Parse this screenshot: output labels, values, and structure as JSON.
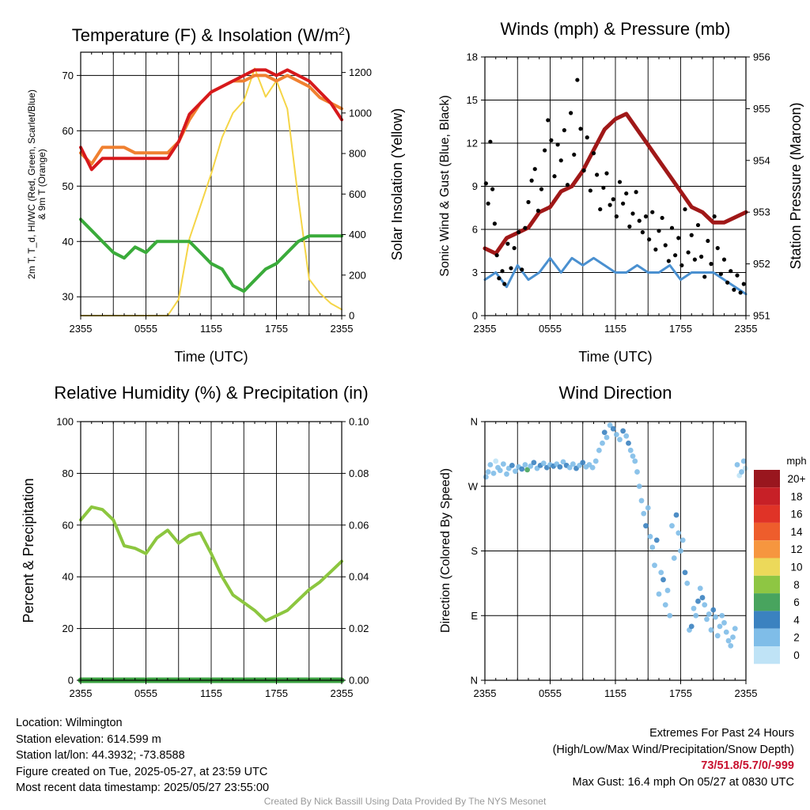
{
  "x_tick_labels": [
    "2355",
    "0555",
    "1155",
    "1755",
    "2355"
  ],
  "colors": {
    "temperature": "#d7191c",
    "dewpoint": "#3aab3a",
    "heat_index_wind_chill": "#f08030",
    "insolation": "#f5d547",
    "wind": "#4a90d0",
    "gust": "#000000",
    "pressure": "#a01818",
    "humidity": "#8cc63f",
    "precipitation": "#3aa040",
    "extremes_text": "#c8102e"
  },
  "chart_data": [
    {
      "type": "line",
      "title": "Temperature (F) & Insolation (W/m²)",
      "xlabel": "Time (UTC)",
      "ylabel": "2m T, T_d, HI/WC (Red, Green, Scarlet/Blue) & 9m T (Orange)",
      "ylabel2": "Solar Insolation (Yellow)",
      "x_hours": [
        0,
        1,
        2,
        3,
        4,
        5,
        6,
        7,
        8,
        9,
        10,
        11,
        12,
        13,
        14,
        15,
        16,
        17,
        18,
        19,
        20,
        21,
        22,
        23,
        24
      ],
      "ylim": [
        26.6,
        74.2
      ],
      "yticks": [
        30,
        40,
        50,
        60,
        70
      ],
      "y2lim": [
        0,
        1300
      ],
      "y2ticks": [
        0,
        200,
        400,
        600,
        800,
        1000,
        1200
      ],
      "series": [
        {
          "name": "2m T",
          "axis": "left",
          "values": [
            57,
            53,
            55,
            55,
            55,
            55,
            55,
            55,
            55,
            58,
            63,
            65,
            67,
            68,
            69,
            70,
            71,
            71,
            70,
            71,
            70,
            69,
            67,
            65,
            62
          ]
        },
        {
          "name": "9m T",
          "axis": "left",
          "values": [
            56,
            54,
            57,
            57,
            57,
            56,
            56,
            56,
            56,
            58,
            62,
            65,
            67,
            68,
            69,
            69,
            70,
            70,
            69,
            70,
            69,
            68,
            66,
            65,
            64
          ]
        },
        {
          "name": "T_d",
          "axis": "left",
          "values": [
            44,
            42,
            40,
            38,
            37,
            39,
            38,
            40,
            40,
            40,
            40,
            38,
            36,
            35,
            32,
            31,
            33,
            35,
            36,
            38,
            40,
            41,
            41,
            41,
            41
          ]
        },
        {
          "name": "Solar Insolation",
          "axis": "right",
          "values": [
            0,
            0,
            0,
            0,
            0,
            0,
            0,
            0,
            0,
            80,
            380,
            540,
            700,
            880,
            1000,
            1060,
            1220,
            1080,
            1160,
            1020,
            580,
            180,
            110,
            60,
            30
          ]
        }
      ]
    },
    {
      "type": "line",
      "title": "Winds (mph) & Pressure (mb)",
      "xlabel": "Time (UTC)",
      "ylabel": "Sonic Wind & Gust (Blue, Black)",
      "ylabel2": "Station Pressure (Maroon)",
      "x_hours": [
        0,
        1,
        2,
        3,
        4,
        5,
        6,
        7,
        8,
        9,
        10,
        11,
        12,
        13,
        14,
        15,
        16,
        17,
        18,
        19,
        20,
        21,
        22,
        23,
        24
      ],
      "ylim": [
        0,
        18
      ],
      "yticks": [
        0,
        3,
        6,
        9,
        12,
        15,
        18
      ],
      "y2lim": [
        951,
        956
      ],
      "y2ticks": [
        951,
        952,
        953,
        954,
        955,
        956
      ],
      "series": [
        {
          "name": "Sonic Wind",
          "axis": "left",
          "values": [
            2.5,
            3,
            2,
            3.5,
            2.5,
            3,
            4,
            3,
            4,
            3.5,
            4,
            3.5,
            3,
            3,
            3.5,
            3,
            3,
            3.5,
            2.5,
            3,
            3,
            3,
            2.5,
            2,
            1.5
          ]
        },
        {
          "name": "Pressure",
          "axis": "right",
          "values": [
            952.3,
            952.2,
            952.5,
            952.6,
            952.7,
            953.0,
            953.1,
            953.4,
            953.5,
            953.8,
            954.2,
            954.6,
            954.8,
            954.9,
            954.6,
            954.3,
            954.0,
            953.7,
            953.4,
            953.1,
            953.0,
            952.8,
            952.8,
            952.9,
            953.0
          ]
        }
      ],
      "gust_points": [
        [
          0.1,
          9.2
        ],
        [
          0.3,
          7.8
        ],
        [
          0.5,
          12.1
        ],
        [
          0.7,
          8.8
        ],
        [
          0.9,
          6.4
        ],
        [
          1.1,
          4.2
        ],
        [
          1.3,
          2.6
        ],
        [
          1.6,
          3.1
        ],
        [
          1.8,
          2.2
        ],
        [
          2.1,
          5.0
        ],
        [
          2.4,
          3.3
        ],
        [
          2.7,
          4.7
        ],
        [
          3.1,
          5.8
        ],
        [
          3.4,
          3.2
        ],
        [
          3.7,
          6.1
        ],
        [
          4.0,
          7.9
        ],
        [
          4.3,
          9.4
        ],
        [
          4.6,
          10.2
        ],
        [
          4.9,
          7.3
        ],
        [
          5.2,
          8.8
        ],
        [
          5.5,
          11.5
        ],
        [
          5.8,
          13.6
        ],
        [
          6.1,
          12.2
        ],
        [
          6.4,
          9.7
        ],
        [
          6.7,
          11.9
        ],
        [
          7.0,
          10.8
        ],
        [
          7.3,
          12.9
        ],
        [
          7.6,
          9.1
        ],
        [
          7.9,
          14.1
        ],
        [
          8.2,
          11.2
        ],
        [
          8.5,
          16.4
        ],
        [
          8.8,
          13.0
        ],
        [
          9.1,
          10.1
        ],
        [
          9.4,
          12.4
        ],
        [
          9.7,
          8.7
        ],
        [
          10.0,
          11.3
        ],
        [
          10.3,
          9.8
        ],
        [
          10.6,
          7.4
        ],
        [
          10.9,
          8.9
        ],
        [
          11.2,
          9.9
        ],
        [
          11.5,
          7.7
        ],
        [
          11.8,
          8.1
        ],
        [
          12.1,
          6.9
        ],
        [
          12.4,
          9.3
        ],
        [
          12.7,
          7.8
        ],
        [
          13.0,
          8.5
        ],
        [
          13.3,
          6.2
        ],
        [
          13.6,
          7.1
        ],
        [
          13.9,
          8.6
        ],
        [
          14.2,
          6.6
        ],
        [
          14.5,
          5.8
        ],
        [
          14.8,
          6.9
        ],
        [
          15.1,
          5.3
        ],
        [
          15.4,
          7.2
        ],
        [
          15.7,
          4.6
        ],
        [
          16.0,
          5.9
        ],
        [
          16.3,
          6.8
        ],
        [
          16.6,
          4.9
        ],
        [
          16.9,
          3.8
        ],
        [
          17.2,
          6.1
        ],
        [
          17.5,
          4.2
        ],
        [
          17.8,
          5.4
        ],
        [
          18.1,
          3.5
        ],
        [
          18.4,
          7.4
        ],
        [
          18.7,
          4.4
        ],
        [
          19.0,
          5.6
        ],
        [
          19.3,
          3.9
        ],
        [
          19.6,
          6.3
        ],
        [
          19.9,
          4.1
        ],
        [
          20.2,
          2.7
        ],
        [
          20.5,
          5.2
        ],
        [
          20.8,
          3.6
        ],
        [
          21.1,
          6.9
        ],
        [
          21.4,
          4.7
        ],
        [
          21.7,
          2.9
        ],
        [
          22.0,
          3.9
        ],
        [
          22.3,
          2.3
        ],
        [
          22.6,
          3.1
        ],
        [
          22.9,
          1.8
        ],
        [
          23.2,
          2.8
        ],
        [
          23.5,
          1.6
        ],
        [
          23.8,
          2.2
        ]
      ]
    },
    {
      "type": "line",
      "title": "Relative Humidity (%) & Precipitation (in)",
      "xlabel": "",
      "ylabel": "Percent & Precipitation",
      "x_hours": [
        0,
        1,
        2,
        3,
        4,
        5,
        6,
        7,
        8,
        9,
        10,
        11,
        12,
        13,
        14,
        15,
        16,
        17,
        18,
        19,
        20,
        21,
        22,
        23,
        24
      ],
      "ylim": [
        0,
        100
      ],
      "yticks": [
        0,
        20,
        40,
        60,
        80,
        100
      ],
      "y2lim": [
        0,
        0.1
      ],
      "y2ticks": [
        "0.00",
        "0.02",
        "0.04",
        "0.06",
        "0.08",
        "0.10"
      ],
      "series": [
        {
          "name": "Relative Humidity",
          "axis": "left",
          "values": [
            62,
            67,
            66,
            62,
            52,
            51,
            49,
            55,
            58,
            53,
            56,
            57,
            49,
            40,
            33,
            30,
            27,
            23,
            25,
            27,
            31,
            35,
            38,
            42,
            46
          ]
        },
        {
          "name": "Precipitation",
          "axis": "right",
          "values": [
            0,
            0,
            0,
            0,
            0,
            0,
            0,
            0,
            0,
            0,
            0,
            0,
            0,
            0,
            0,
            0,
            0,
            0,
            0,
            0,
            0,
            0,
            0,
            0,
            0
          ]
        }
      ]
    },
    {
      "type": "scatter",
      "title": "Wind Direction",
      "xlabel": "",
      "ylabel": "Direction (Colored By Speed)",
      "ylim": [
        0,
        360
      ],
      "yticks": [
        "N",
        "E",
        "S",
        "W",
        "N"
      ],
      "colorbar": {
        "title": "mph",
        "labels": [
          "20+",
          "18",
          "16",
          "14",
          "12",
          "10",
          "8",
          "6",
          "4",
          "2",
          "0"
        ],
        "colors": [
          "#99161e",
          "#c72027",
          "#e03327",
          "#ee5d2c",
          "#f6963f",
          "#ecd95a",
          "#8ec643",
          "#48a45e",
          "#3b82c0",
          "#7fbde8",
          "#bfe3f6"
        ]
      },
      "points": [
        [
          0.1,
          283,
          2
        ],
        [
          0.3,
          290,
          3
        ],
        [
          0.5,
          300,
          2
        ],
        [
          0.8,
          288,
          2
        ],
        [
          1.0,
          305,
          1
        ],
        [
          1.2,
          296,
          3
        ],
        [
          1.4,
          292,
          2
        ],
        [
          1.7,
          301,
          3
        ],
        [
          2.0,
          287,
          2
        ],
        [
          2.2,
          295,
          3
        ],
        [
          2.5,
          299,
          4
        ],
        [
          2.8,
          291,
          2
        ],
        [
          3.1,
          297,
          3
        ],
        [
          3.4,
          294,
          4
        ],
        [
          3.7,
          300,
          3
        ],
        [
          3.9,
          293,
          7
        ],
        [
          4.2,
          298,
          3
        ],
        [
          4.5,
          303,
          4
        ],
        [
          4.8,
          295,
          3
        ],
        [
          5.1,
          299,
          4
        ],
        [
          5.4,
          302,
          3
        ],
        [
          5.7,
          296,
          4
        ],
        [
          6.0,
          300,
          3
        ],
        [
          6.3,
          298,
          4
        ],
        [
          6.6,
          301,
          3
        ],
        [
          6.9,
          297,
          4
        ],
        [
          7.2,
          304,
          3
        ],
        [
          7.5,
          299,
          4
        ],
        [
          7.8,
          296,
          2
        ],
        [
          8.1,
          301,
          3
        ],
        [
          8.4,
          295,
          4
        ],
        [
          8.7,
          299,
          3
        ],
        [
          9.0,
          303,
          4
        ],
        [
          9.3,
          297,
          3
        ],
        [
          9.6,
          300,
          2
        ],
        [
          9.9,
          296,
          3
        ],
        [
          10.2,
          305,
          2
        ],
        [
          10.5,
          320,
          3
        ],
        [
          10.8,
          330,
          2
        ],
        [
          11.0,
          345,
          4
        ],
        [
          11.2,
          338,
          3
        ],
        [
          11.5,
          355,
          2
        ],
        [
          11.8,
          350,
          4
        ],
        [
          12.1,
          342,
          3
        ],
        [
          12.4,
          335,
          2
        ],
        [
          12.7,
          347,
          4
        ],
        [
          13.0,
          340,
          3
        ],
        [
          13.2,
          330,
          4
        ],
        [
          13.4,
          320,
          3
        ],
        [
          13.6,
          312,
          2
        ],
        [
          13.8,
          305,
          3
        ],
        [
          14.0,
          290,
          2
        ],
        [
          14.2,
          270,
          3
        ],
        [
          14.4,
          250,
          2
        ],
        [
          14.6,
          232,
          3
        ],
        [
          14.8,
          215,
          4
        ],
        [
          15.0,
          240,
          2
        ],
        [
          15.2,
          200,
          3
        ],
        [
          15.4,
          185,
          2
        ],
        [
          15.6,
          160,
          3
        ],
        [
          15.8,
          195,
          4
        ],
        [
          16.0,
          120,
          3
        ],
        [
          16.2,
          150,
          2
        ],
        [
          16.4,
          140,
          4
        ],
        [
          16.6,
          105,
          3
        ],
        [
          16.8,
          125,
          2
        ],
        [
          17.0,
          90,
          3
        ],
        [
          17.2,
          215,
          2
        ],
        [
          17.4,
          170,
          3
        ],
        [
          17.6,
          230,
          4
        ],
        [
          17.8,
          205,
          2
        ],
        [
          18.0,
          180,
          3
        ],
        [
          18.2,
          195,
          2
        ],
        [
          18.4,
          150,
          4
        ],
        [
          18.6,
          135,
          3
        ],
        [
          18.8,
          70,
          2
        ],
        [
          19.0,
          75,
          4
        ],
        [
          19.2,
          100,
          3
        ],
        [
          19.4,
          90,
          2
        ],
        [
          19.6,
          110,
          4
        ],
        [
          19.8,
          128,
          3
        ],
        [
          20.0,
          115,
          4
        ],
        [
          20.2,
          105,
          2
        ],
        [
          20.4,
          85,
          3
        ],
        [
          20.6,
          92,
          2
        ],
        [
          20.8,
          70,
          3
        ],
        [
          21.0,
          98,
          4
        ],
        [
          21.2,
          88,
          3
        ],
        [
          21.4,
          62,
          2
        ],
        [
          21.6,
          75,
          3
        ],
        [
          21.8,
          90,
          2
        ],
        [
          22.0,
          80,
          3
        ],
        [
          22.2,
          67,
          2
        ],
        [
          22.4,
          55,
          3
        ],
        [
          22.6,
          48,
          2
        ],
        [
          22.8,
          60,
          3
        ],
        [
          23.0,
          72,
          2
        ],
        [
          23.2,
          300,
          2
        ],
        [
          23.4,
          285,
          1
        ],
        [
          23.6,
          290,
          3
        ],
        [
          23.8,
          305,
          2
        ],
        [
          23.95,
          295,
          1
        ]
      ]
    }
  ],
  "info": {
    "location": "Location: Wilmington",
    "elevation": "Station elevation: 614.599 m",
    "latlon": "Station lat/lon: 44.3932; -73.8588",
    "created": "Figure created on Tue, 2025-05-27, at 23:59 UTC",
    "recent": "Most recent data timestamp: 2025/05/27 23:55:00"
  },
  "extremes": {
    "title": "Extremes For Past 24 Hours",
    "subtitle": "(High/Low/Max Wind/Precipitation/Snow Depth)",
    "values": "73/51.8/5.7/0/-999",
    "max_gust": "Max Gust: 16.4 mph On 05/27 at 0830 UTC"
  },
  "credit": "Created By Nick Bassill Using Data Provided By The NYS Mesonet"
}
